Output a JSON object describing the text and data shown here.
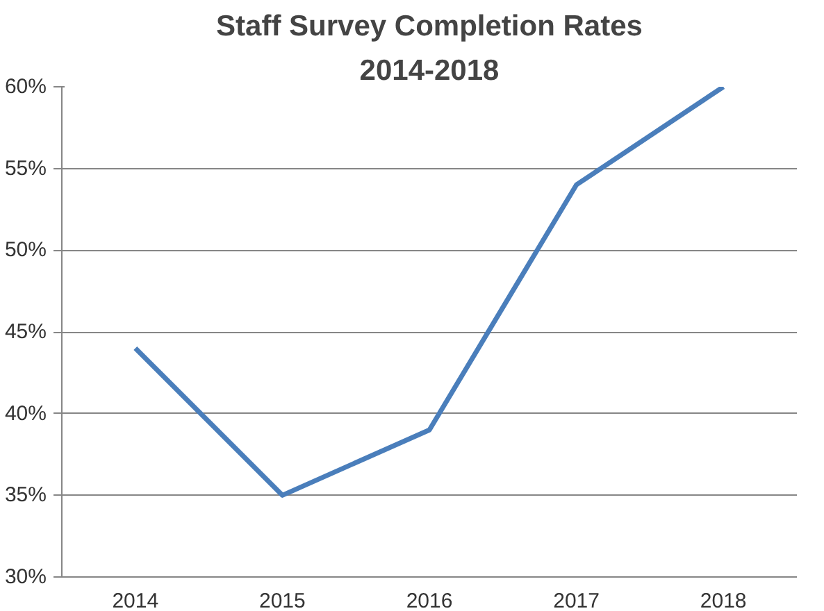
{
  "chart_data": {
    "type": "line",
    "title": "Staff Survey Completion Rates",
    "subtitle": "2014-2018",
    "categories": [
      "2014",
      "2015",
      "2016",
      "2017",
      "2018"
    ],
    "series": [
      {
        "color": "#4a7ebb",
        "values": [
          44,
          35,
          39,
          54,
          60
        ]
      }
    ],
    "ylim": [
      30,
      60
    ],
    "yticks": [
      {
        "value": 30,
        "label": "30%"
      },
      {
        "value": 35,
        "label": "35%"
      },
      {
        "value": 40,
        "label": "40%"
      },
      {
        "value": 45,
        "label": "45%"
      },
      {
        "value": 50,
        "label": "50%"
      },
      {
        "value": 55,
        "label": "55%"
      },
      {
        "value": 60,
        "label": "60%"
      }
    ],
    "grid": "y",
    "marker": "none",
    "line_style": "solid"
  }
}
